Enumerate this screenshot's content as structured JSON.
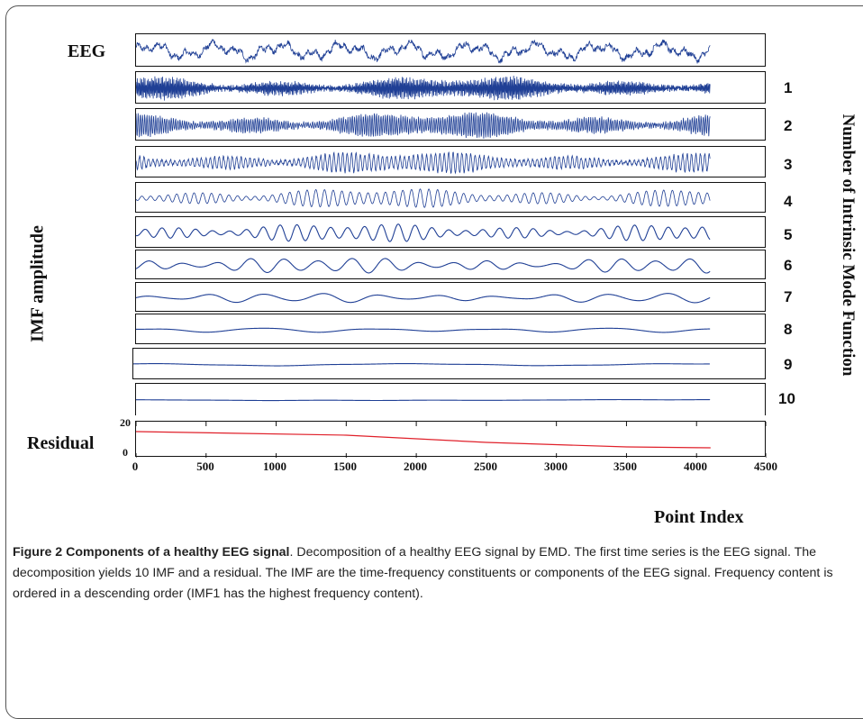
{
  "colors": {
    "signal": "#1f3f95",
    "residual": "#e0202a",
    "axis": "#111111"
  },
  "chart_data": {
    "type": "line",
    "title": "",
    "xlabel": "Point Index",
    "ylabel": "IMF amplitude",
    "right_label": "Number of Intrinsic Mode Function",
    "xlim": [
      0,
      4500
    ],
    "x_ticks": [
      "0",
      "500",
      "1000",
      "1500",
      "2000",
      "2500",
      "3000",
      "3500",
      "4000",
      "4500"
    ],
    "n_points": 4097,
    "top_label": "EEG",
    "bottom_label": "Residual",
    "residual_yticks": [
      "20",
      "0"
    ],
    "series": [
      {
        "name": "EEG",
        "label": "",
        "cycles": 0,
        "amp": 0.85
      },
      {
        "name": "IMF 1",
        "label": "1",
        "cycles": 520,
        "amp": 0.75
      },
      {
        "name": "IMF 2",
        "label": "2",
        "cycles": 260,
        "amp": 0.8
      },
      {
        "name": "IMF 3",
        "label": "3",
        "cycles": 130,
        "amp": 0.7
      },
      {
        "name": "IMF 4",
        "label": "4",
        "cycles": 66,
        "amp": 0.65
      },
      {
        "name": "IMF 5",
        "label": "5",
        "cycles": 34,
        "amp": 0.6
      },
      {
        "name": "IMF 6",
        "label": "6",
        "cycles": 17,
        "amp": 0.55
      },
      {
        "name": "IMF 7",
        "label": "7",
        "cycles": 10,
        "amp": 0.35
      },
      {
        "name": "IMF 8",
        "label": "8",
        "cycles": 5,
        "amp": 0.18
      },
      {
        "name": "IMF 9",
        "label": "9",
        "cycles": 2,
        "amp": 0.1
      },
      {
        "name": "IMF 10",
        "label": "10",
        "cycles": 0.8,
        "amp": 0.05
      },
      {
        "name": "Residual",
        "label": "",
        "x": [
          0,
          1500,
          2500,
          3500,
          4100
        ],
        "y": [
          14.5,
          12.5,
          8.5,
          6.0,
          5.5
        ],
        "ylim": [
          0,
          20
        ]
      }
    ]
  },
  "caption": {
    "bold": "Figure 2 Components of a healthy EEG signal",
    "text": ". Decomposition of a healthy EEG signal by EMD. The first time series is the EEG signal. The decomposition yields 10 IMF and a residual. The IMF are the time-frequency constituents or components of the EEG signal. Frequency content is ordered in a descending order (IMF1 has the highest frequency content)."
  }
}
